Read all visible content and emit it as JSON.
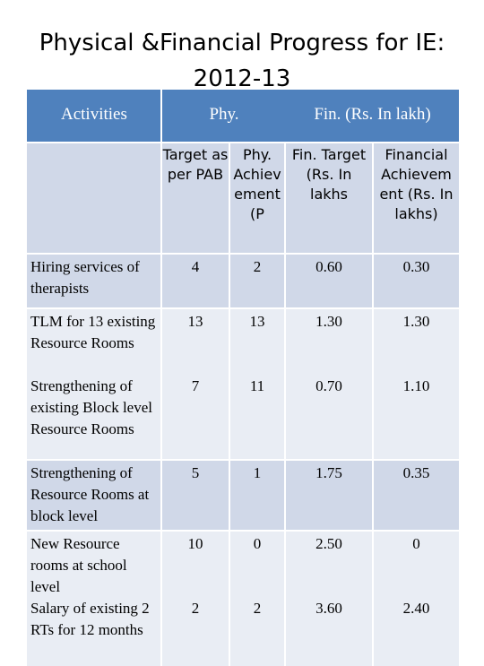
{
  "title_line1": "Physical &Financial Progress for IE:",
  "title_line2": "2012-13",
  "headers": {
    "activities": "Activities",
    "phy": "Phy.",
    "fin": "Fin. (Rs. In lakh)"
  },
  "subheaders": {
    "target_pab": "Target as per PAB",
    "phy_achievement": "Phy. Achiev ement (P",
    "fin_target": "Fin. Target (Rs. In lakhs",
    "fin_achievement": "Financial Achievem ent (Rs. In lakhs)"
  },
  "rows": [
    {
      "activity": "Hiring services of therapists",
      "target": "4",
      "achievement": "2",
      "fin_target": "0.60",
      "fin_achievement": "0.30"
    },
    {
      "activity": "TLM for 13 existing Resource Rooms",
      "target": "13",
      "achievement": "13",
      "fin_target": "1.30",
      "fin_achievement": "1.30"
    },
    {
      "activity": "Strengthening of existing Block level Resource Rooms",
      "target": "7",
      "achievement": "11",
      "fin_target": "0.70",
      "fin_achievement": "1.10"
    },
    {
      "activity": "Strengthening of Resource Rooms at block level",
      "target": "5",
      "achievement": "1",
      "fin_target": "1.75",
      "fin_achievement": "0.35"
    },
    {
      "activity": "New Resource rooms at school level",
      "target": "10",
      "achievement": "0",
      "fin_target": "2.50",
      "fin_achievement": "0"
    },
    {
      "activity": "Salary of existing 2 RTs for 12 months",
      "target": "2",
      "achievement": "2",
      "fin_target": "3.60",
      "fin_achievement": "2.40"
    }
  ]
}
